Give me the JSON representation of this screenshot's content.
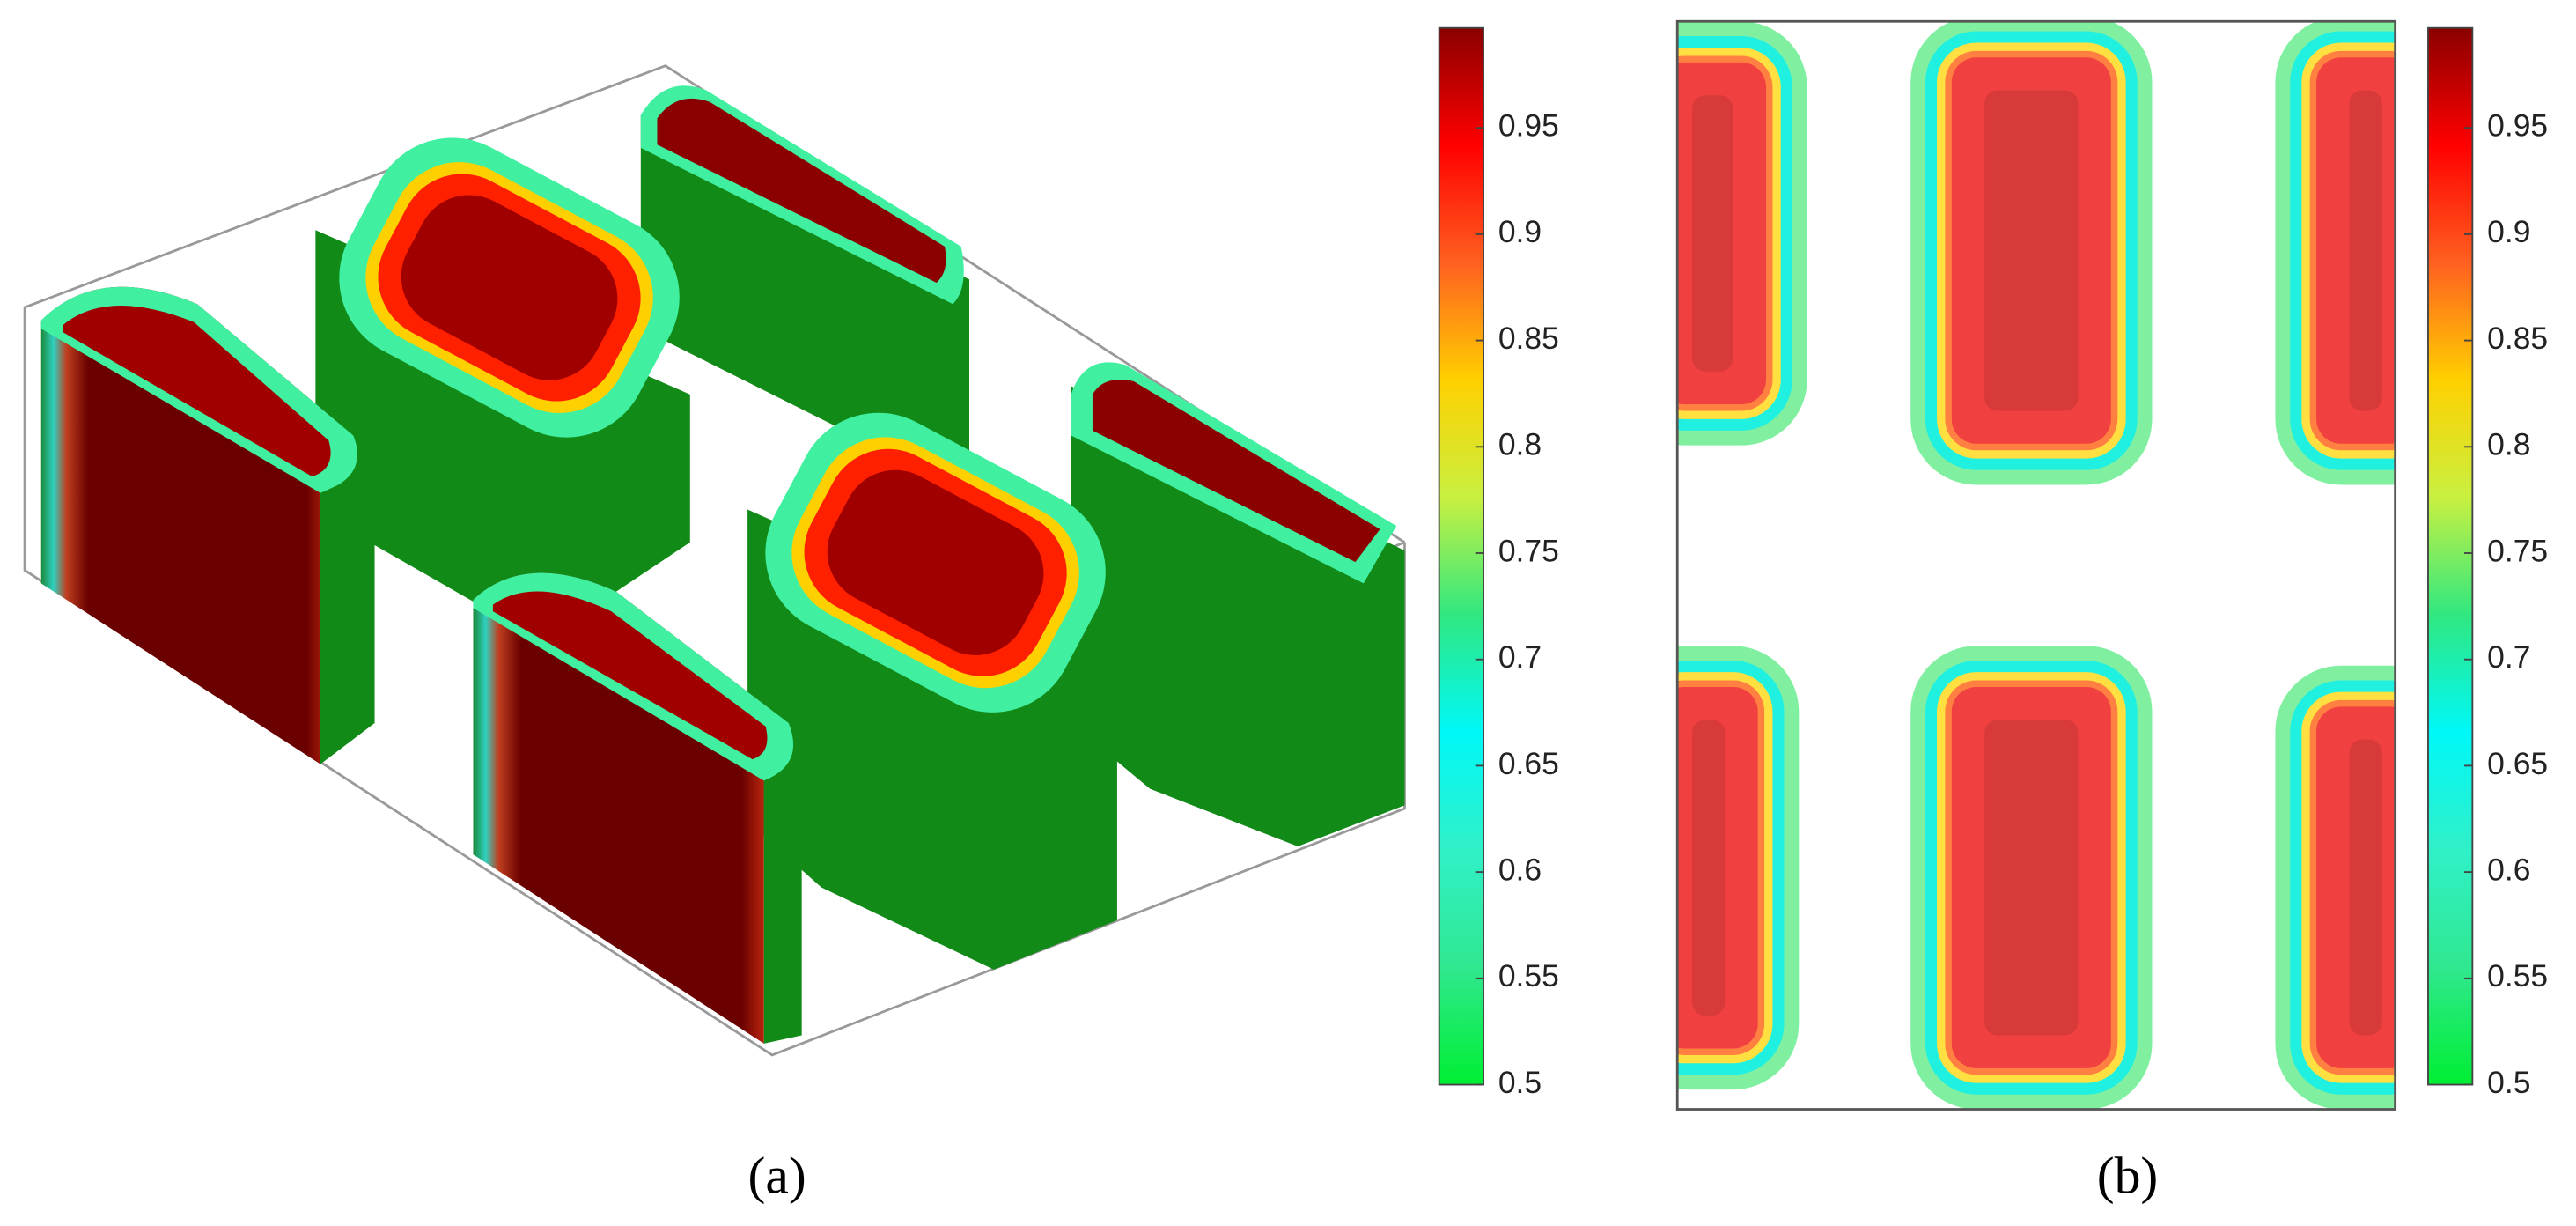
{
  "chart_data": [
    {
      "type": "heatmap",
      "label": "(a)",
      "clim": [
        0.5,
        0.997
      ],
      "cticks": [
        0.5,
        0.55,
        0.6,
        0.65,
        0.7,
        0.75,
        0.8,
        0.85,
        0.9,
        0.95
      ],
      "colormap": [
        "#00ee33",
        "#30e890",
        "#30f0c8",
        "#00f8f8",
        "#30e880",
        "#c8f040",
        "#ffd000",
        "#ff6020",
        "#ff0000",
        "#8b0000"
      ]
    },
    {
      "type": "heatmap",
      "label": "(b)",
      "clim": [
        0.5,
        0.997
      ],
      "cticks": [
        0.5,
        0.55,
        0.6,
        0.65,
        0.7,
        0.75,
        0.8,
        0.85,
        0.9,
        0.95
      ],
      "colormap": [
        "#00ee33",
        "#30e890",
        "#30f0c8",
        "#00f8f8",
        "#30e880",
        "#c8f040",
        "#ffd000",
        "#ff6020",
        "#ff0000",
        "#8b0000"
      ]
    }
  ]
}
